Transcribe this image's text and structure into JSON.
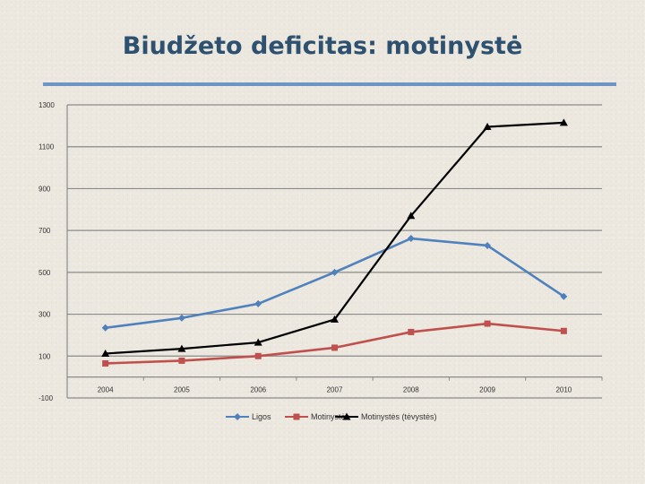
{
  "slide": {
    "title": "Biudžeto deficitas: motinystė"
  },
  "chart_data": {
    "type": "line",
    "title": "",
    "xlabel": "",
    "ylabel": "",
    "categories": [
      "2004",
      "2005",
      "2006",
      "2007",
      "2008",
      "2009",
      "2010"
    ],
    "ylim": [
      -100,
      1300
    ],
    "y_ticks": [
      -100,
      100,
      300,
      500,
      700,
      900,
      1100,
      1300
    ],
    "grid": true,
    "legend_position": "bottom",
    "series": [
      {
        "name": "Ligos",
        "color": "#4f81bd",
        "marker": "diamond",
        "values": [
          235,
          282,
          350,
          500,
          662,
          628,
          385
        ]
      },
      {
        "name": "Motinystės",
        "color": "#c0504d",
        "marker": "square",
        "values": [
          65,
          78,
          100,
          140,
          215,
          255,
          220
        ]
      },
      {
        "name": "Motinystės (tėvystės)",
        "color": "#000000",
        "marker": "triangle",
        "values": [
          112,
          135,
          165,
          275,
          770,
          1195,
          1215
        ]
      }
    ]
  }
}
